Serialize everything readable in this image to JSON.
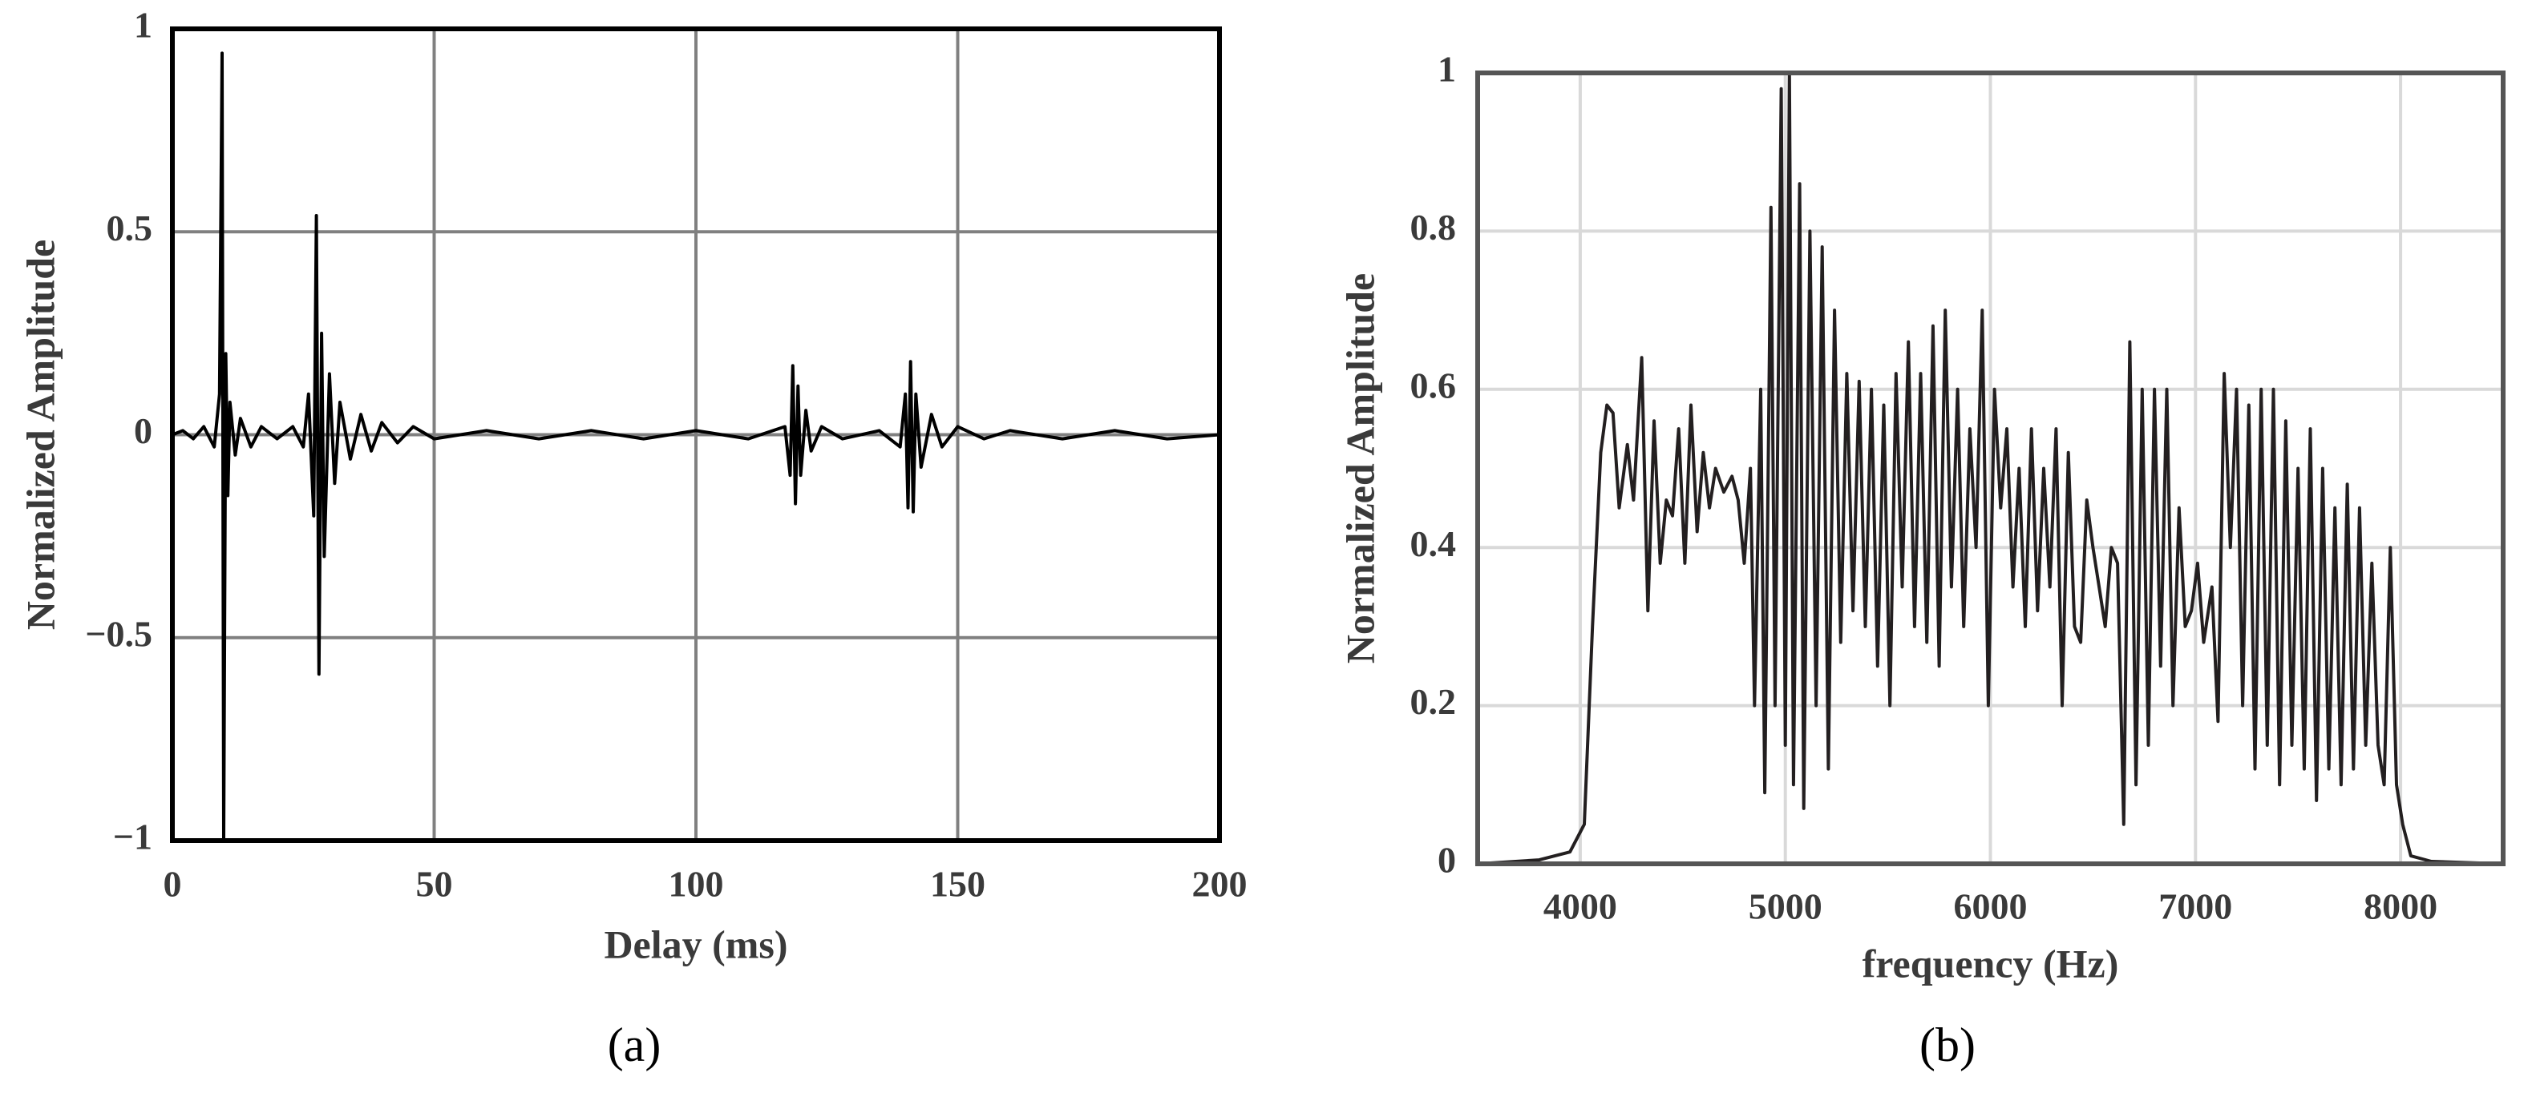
{
  "chart_data": [
    {
      "type": "line",
      "caption": "(a)",
      "xlabel": "Delay (ms)",
      "ylabel": "Normalized Amplitude",
      "xlim": [
        0,
        200
      ],
      "xticks": [
        0,
        50,
        100,
        150,
        200
      ],
      "ylim": [
        -1,
        1
      ],
      "yticks": [
        {
          "value": -1,
          "label": "−1"
        },
        {
          "value": -0.5,
          "label": "−0.5"
        },
        0,
        0.5,
        1
      ],
      "grid": true,
      "grid_color": "#808080",
      "color": "#000000",
      "x": [
        0,
        2,
        4,
        6,
        8,
        9,
        9.5,
        9.8,
        10.2,
        10.6,
        11,
        12,
        13,
        15,
        17,
        20,
        23,
        25,
        26,
        27,
        27.5,
        28,
        28.5,
        29,
        30,
        31,
        32,
        34,
        36,
        38,
        40,
        43,
        46,
        50,
        60,
        70,
        80,
        90,
        100,
        110,
        117,
        118,
        118.5,
        119,
        119.5,
        120,
        121,
        122,
        124,
        128,
        135,
        139,
        140,
        140.5,
        141,
        141.5,
        142,
        143,
        145,
        147,
        150,
        155,
        160,
        170,
        180,
        190,
        200
      ],
      "values": [
        0,
        0.01,
        -0.01,
        0.02,
        -0.03,
        0.1,
        0.94,
        -1.0,
        0.2,
        -0.15,
        0.08,
        -0.05,
        0.04,
        -0.03,
        0.02,
        -0.01,
        0.02,
        -0.03,
        0.1,
        -0.2,
        0.54,
        -0.59,
        0.25,
        -0.3,
        0.15,
        -0.12,
        0.08,
        -0.06,
        0.05,
        -0.04,
        0.03,
        -0.02,
        0.02,
        -0.01,
        0.01,
        -0.01,
        0.01,
        -0.01,
        0.01,
        -0.01,
        0.02,
        -0.1,
        0.17,
        -0.17,
        0.12,
        -0.1,
        0.06,
        -0.04,
        0.02,
        -0.01,
        0.01,
        -0.03,
        0.1,
        -0.18,
        0.18,
        -0.19,
        0.1,
        -0.08,
        0.05,
        -0.03,
        0.02,
        -0.01,
        0.01,
        -0.01,
        0.01,
        -0.01,
        0
      ]
    },
    {
      "type": "line",
      "caption": "(b)",
      "xlabel": "frequency (Hz)",
      "ylabel": "Normalized Amplitude",
      "xlim": [
        3500,
        8500
      ],
      "xticks": [
        4000,
        5000,
        6000,
        7000,
        8000
      ],
      "ylim": [
        0,
        1
      ],
      "yticks": [
        0,
        0.2,
        0.4,
        0.6,
        0.8,
        1
      ],
      "grid": true,
      "grid_color": "#d9d9d9",
      "color": "#231f20",
      "x": [
        3500,
        3800,
        3950,
        4020,
        4060,
        4100,
        4130,
        4160,
        4190,
        4230,
        4260,
        4300,
        4330,
        4360,
        4390,
        4420,
        4450,
        4480,
        4510,
        4540,
        4570,
        4600,
        4630,
        4660,
        4700,
        4740,
        4770,
        4800,
        4830,
        4850,
        4880,
        4900,
        4930,
        4950,
        4980,
        5000,
        5020,
        5040,
        5070,
        5090,
        5120,
        5150,
        5180,
        5210,
        5240,
        5270,
        5300,
        5330,
        5360,
        5390,
        5420,
        5450,
        5480,
        5510,
        5540,
        5570,
        5600,
        5630,
        5660,
        5690,
        5720,
        5750,
        5780,
        5810,
        5840,
        5870,
        5900,
        5930,
        5960,
        5990,
        6020,
        6050,
        6080,
        6110,
        6140,
        6170,
        6200,
        6230,
        6260,
        6290,
        6320,
        6350,
        6380,
        6410,
        6440,
        6470,
        6500,
        6530,
        6560,
        6590,
        6620,
        6650,
        6680,
        6710,
        6740,
        6770,
        6800,
        6830,
        6860,
        6890,
        6920,
        6950,
        6980,
        7010,
        7040,
        7080,
        7110,
        7140,
        7170,
        7200,
        7230,
        7260,
        7290,
        7320,
        7350,
        7380,
        7410,
        7440,
        7470,
        7500,
        7530,
        7560,
        7590,
        7620,
        7650,
        7680,
        7710,
        7740,
        7770,
        7800,
        7830,
        7860,
        7890,
        7920,
        7950,
        7980,
        8010,
        8050,
        8150,
        8500
      ],
      "values": [
        0,
        0.005,
        0.015,
        0.05,
        0.3,
        0.52,
        0.58,
        0.57,
        0.45,
        0.53,
        0.46,
        0.64,
        0.32,
        0.56,
        0.38,
        0.46,
        0.44,
        0.55,
        0.38,
        0.58,
        0.42,
        0.52,
        0.45,
        0.5,
        0.47,
        0.49,
        0.46,
        0.38,
        0.5,
        0.2,
        0.6,
        0.09,
        0.83,
        0.2,
        0.98,
        0.15,
        1.0,
        0.1,
        0.86,
        0.07,
        0.8,
        0.2,
        0.78,
        0.12,
        0.7,
        0.28,
        0.62,
        0.32,
        0.61,
        0.3,
        0.6,
        0.25,
        0.58,
        0.2,
        0.62,
        0.35,
        0.66,
        0.3,
        0.62,
        0.28,
        0.68,
        0.25,
        0.7,
        0.35,
        0.6,
        0.3,
        0.55,
        0.4,
        0.7,
        0.2,
        0.6,
        0.45,
        0.55,
        0.35,
        0.5,
        0.3,
        0.55,
        0.32,
        0.5,
        0.35,
        0.55,
        0.2,
        0.52,
        0.3,
        0.28,
        0.46,
        0.4,
        0.35,
        0.3,
        0.4,
        0.38,
        0.05,
        0.66,
        0.1,
        0.6,
        0.15,
        0.6,
        0.25,
        0.6,
        0.2,
        0.45,
        0.3,
        0.32,
        0.38,
        0.28,
        0.35,
        0.18,
        0.62,
        0.4,
        0.6,
        0.2,
        0.58,
        0.12,
        0.6,
        0.15,
        0.6,
        0.1,
        0.56,
        0.15,
        0.5,
        0.12,
        0.55,
        0.08,
        0.5,
        0.12,
        0.45,
        0.1,
        0.48,
        0.12,
        0.45,
        0.15,
        0.38,
        0.15,
        0.1,
        0.4,
        0.1,
        0.05,
        0.01,
        0.003,
        0
      ]
    }
  ]
}
